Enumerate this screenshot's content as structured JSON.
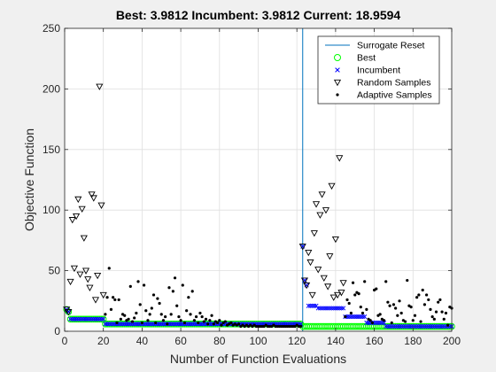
{
  "chart_data": {
    "type": "scatter",
    "title": "Best: 3.9812 Incumbent: 3.9812 Current: 18.9594",
    "xlabel": "Number of Function Evaluations",
    "ylabel": "Objective Function",
    "xlim": [
      0,
      200
    ],
    "ylim": [
      0,
      250
    ],
    "xticks": [
      0,
      20,
      40,
      60,
      80,
      100,
      120,
      140,
      160,
      180,
      200
    ],
    "yticks": [
      0,
      50,
      100,
      150,
      200,
      250
    ],
    "grid": true,
    "legend_position": "top-right",
    "legend": [
      {
        "label": "Surrogate Reset",
        "marker": "line",
        "color": "#0072bd"
      },
      {
        "label": "Best",
        "marker": "circle",
        "color": "#00ff00"
      },
      {
        "label": "Incumbent",
        "marker": "x",
        "color": "#0000ff"
      },
      {
        "label": "Random Samples",
        "marker": "triangle-down",
        "color": "#000000"
      },
      {
        "label": "Adaptive Samples",
        "marker": "dot",
        "color": "#000000"
      }
    ],
    "surrogate_reset_x": [
      123
    ],
    "random_samples": [
      [
        1,
        18
      ],
      [
        2,
        16
      ],
      [
        3,
        41
      ],
      [
        4,
        92
      ],
      [
        5,
        52
      ],
      [
        6,
        95
      ],
      [
        7,
        109
      ],
      [
        8,
        47
      ],
      [
        9,
        101
      ],
      [
        10,
        77
      ],
      [
        11,
        50
      ],
      [
        12,
        43
      ],
      [
        13,
        36
      ],
      [
        14,
        113
      ],
      [
        15,
        110
      ],
      [
        16,
        26
      ],
      [
        17,
        46
      ],
      [
        18,
        202
      ],
      [
        19,
        104
      ],
      [
        20,
        30
      ],
      [
        123,
        70
      ],
      [
        124,
        42
      ],
      [
        125,
        38
      ],
      [
        126,
        65
      ],
      [
        127,
        57
      ],
      [
        128,
        30
      ],
      [
        129,
        81
      ],
      [
        130,
        105
      ],
      [
        131,
        51
      ],
      [
        132,
        96
      ],
      [
        133,
        113
      ],
      [
        134,
        44
      ],
      [
        135,
        100
      ],
      [
        136,
        37
      ],
      [
        137,
        62
      ],
      [
        138,
        120
      ],
      [
        139,
        28
      ],
      [
        140,
        76
      ],
      [
        141,
        30
      ],
      [
        142,
        143
      ],
      [
        143,
        32
      ],
      [
        144,
        40
      ]
    ],
    "adaptive_samples": [
      [
        21,
        14
      ],
      [
        22,
        28
      ],
      [
        23,
        52
      ],
      [
        24,
        18
      ],
      [
        25,
        28
      ],
      [
        26,
        26
      ],
      [
        27,
        7
      ],
      [
        28,
        26
      ],
      [
        29,
        10
      ],
      [
        30,
        14
      ],
      [
        31,
        13
      ],
      [
        32,
        9
      ],
      [
        33,
        10
      ],
      [
        34,
        37
      ],
      [
        35,
        8
      ],
      [
        36,
        11
      ],
      [
        37,
        15
      ],
      [
        38,
        41
      ],
      [
        39,
        22
      ],
      [
        40,
        7
      ],
      [
        41,
        38
      ],
      [
        42,
        17
      ],
      [
        43,
        9
      ],
      [
        44,
        14
      ],
      [
        45,
        19
      ],
      [
        46,
        30
      ],
      [
        47,
        7
      ],
      [
        48,
        27
      ],
      [
        49,
        23
      ],
      [
        50,
        14
      ],
      [
        51,
        9
      ],
      [
        52,
        12
      ],
      [
        53,
        6
      ],
      [
        54,
        36
      ],
      [
        55,
        14
      ],
      [
        56,
        33
      ],
      [
        57,
        44
      ],
      [
        58,
        21
      ],
      [
        59,
        12
      ],
      [
        60,
        9
      ],
      [
        61,
        38
      ],
      [
        62,
        7
      ],
      [
        63,
        17
      ],
      [
        64,
        28
      ],
      [
        65,
        14
      ],
      [
        66,
        33
      ],
      [
        67,
        9
      ],
      [
        68,
        12
      ],
      [
        69,
        7
      ],
      [
        70,
        15
      ],
      [
        71,
        12
      ],
      [
        72,
        8
      ],
      [
        73,
        10
      ],
      [
        74,
        6
      ],
      [
        75,
        9
      ],
      [
        76,
        13
      ],
      [
        77,
        6
      ],
      [
        78,
        8
      ],
      [
        79,
        7
      ],
      [
        80,
        9
      ],
      [
        81,
        5
      ],
      [
        82,
        7
      ],
      [
        83,
        8
      ],
      [
        84,
        5
      ],
      [
        85,
        6
      ],
      [
        86,
        7
      ],
      [
        87,
        5
      ],
      [
        88,
        6
      ],
      [
        89,
        5
      ],
      [
        90,
        6
      ],
      [
        91,
        4
      ],
      [
        92,
        5
      ],
      [
        93,
        4
      ],
      [
        94,
        5
      ],
      [
        95,
        4
      ],
      [
        96,
        5
      ],
      [
        97,
        4
      ],
      [
        98,
        5
      ],
      [
        99,
        4
      ],
      [
        100,
        4
      ],
      [
        101,
        4
      ],
      [
        102,
        4
      ],
      [
        103,
        4
      ],
      [
        104,
        5
      ],
      [
        105,
        4
      ],
      [
        106,
        4
      ],
      [
        107,
        4
      ],
      [
        108,
        5
      ],
      [
        109,
        4
      ],
      [
        110,
        4
      ],
      [
        111,
        4
      ],
      [
        112,
        4
      ],
      [
        113,
        4
      ],
      [
        114,
        4
      ],
      [
        115,
        4
      ],
      [
        116,
        4
      ],
      [
        117,
        4
      ],
      [
        118,
        4
      ],
      [
        119,
        4
      ],
      [
        120,
        5
      ],
      [
        121,
        4
      ],
      [
        122,
        4
      ],
      [
        145,
        12
      ],
      [
        146,
        26
      ],
      [
        147,
        23
      ],
      [
        148,
        15
      ],
      [
        149,
        40
      ],
      [
        150,
        30
      ],
      [
        151,
        32
      ],
      [
        152,
        31
      ],
      [
        153,
        20
      ],
      [
        154,
        15
      ],
      [
        155,
        41
      ],
      [
        156,
        18
      ],
      [
        157,
        10
      ],
      [
        158,
        9
      ],
      [
        159,
        7
      ],
      [
        160,
        34
      ],
      [
        161,
        35
      ],
      [
        162,
        13
      ],
      [
        163,
        14
      ],
      [
        164,
        10
      ],
      [
        165,
        9
      ],
      [
        166,
        41
      ],
      [
        167,
        24
      ],
      [
        168,
        21
      ],
      [
        169,
        7
      ],
      [
        170,
        22
      ],
      [
        171,
        19
      ],
      [
        172,
        13
      ],
      [
        173,
        25
      ],
      [
        174,
        15
      ],
      [
        175,
        9
      ],
      [
        176,
        8
      ],
      [
        177,
        42
      ],
      [
        178,
        21
      ],
      [
        179,
        20
      ],
      [
        180,
        9
      ],
      [
        181,
        13
      ],
      [
        182,
        28
      ],
      [
        183,
        30
      ],
      [
        184,
        8
      ],
      [
        185,
        34
      ],
      [
        186,
        22
      ],
      [
        187,
        30
      ],
      [
        188,
        26
      ],
      [
        189,
        18
      ],
      [
        190,
        12
      ],
      [
        191,
        10
      ],
      [
        192,
        16
      ],
      [
        193,
        24
      ],
      [
        194,
        26
      ],
      [
        195,
        16
      ],
      [
        196,
        10
      ],
      [
        197,
        15
      ],
      [
        198,
        5
      ],
      [
        199,
        20
      ],
      [
        200,
        19
      ]
    ],
    "best": {
      "segments": [
        {
          "x_from": 1,
          "x_to": 1,
          "y": 18
        },
        {
          "x_from": 2,
          "x_to": 2,
          "y": 16
        },
        {
          "x_from": 3,
          "x_to": 20,
          "y": 10
        },
        {
          "x_from": 21,
          "x_to": 122,
          "y": 6
        },
        {
          "x_from": 123,
          "x_to": 123,
          "y": 4
        },
        {
          "x_from": 124,
          "x_to": 200,
          "y": 4
        }
      ]
    },
    "incumbent": {
      "segments": [
        {
          "x_from": 1,
          "x_to": 1,
          "y": 18
        },
        {
          "x_from": 2,
          "x_to": 2,
          "y": 16
        },
        {
          "x_from": 3,
          "x_to": 20,
          "y": 10
        },
        {
          "x_from": 21,
          "x_to": 122,
          "y": 6
        },
        {
          "x_from": 123,
          "x_to": 123,
          "y": 70
        },
        {
          "x_from": 124,
          "x_to": 124,
          "y": 42
        },
        {
          "x_from": 125,
          "x_to": 125,
          "y": 38
        },
        {
          "x_from": 126,
          "x_to": 130,
          "y": 21
        },
        {
          "x_from": 131,
          "x_to": 144,
          "y": 19
        },
        {
          "x_from": 145,
          "x_to": 155,
          "y": 12
        },
        {
          "x_from": 156,
          "x_to": 165,
          "y": 7
        },
        {
          "x_from": 166,
          "x_to": 200,
          "y": 4
        }
      ]
    }
  }
}
